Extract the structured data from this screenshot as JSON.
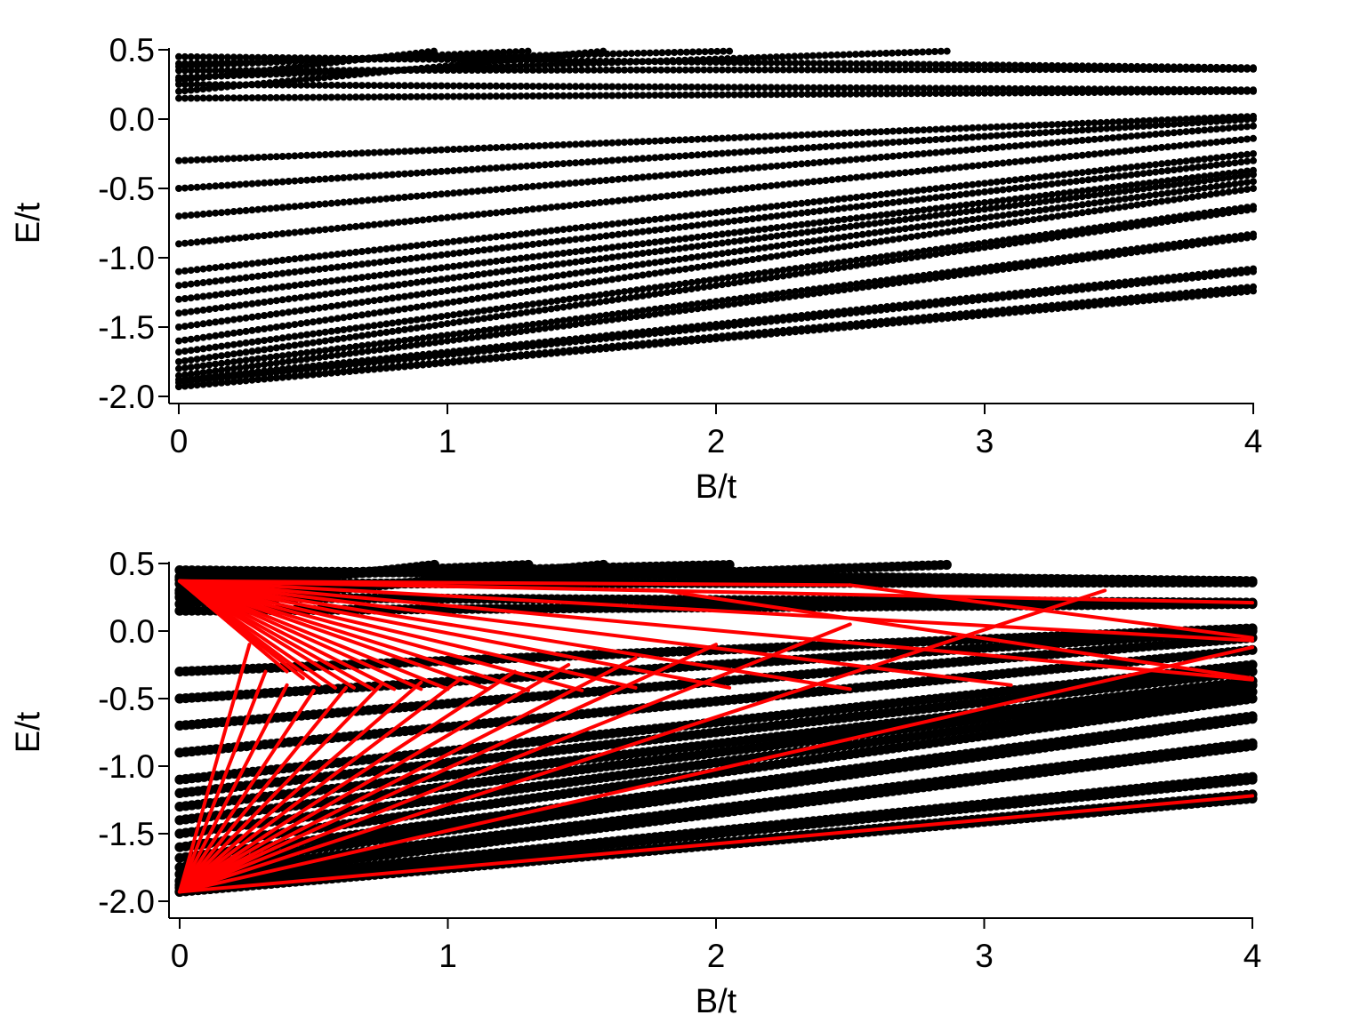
{
  "chart_data": [
    {
      "type": "scatter",
      "title": "",
      "xlabel": "B/t",
      "ylabel": "E/t",
      "xlim": [
        0,
        4
      ],
      "ylim": [
        -2.0,
        0.5
      ],
      "xticks": [
        0,
        1,
        2,
        3,
        4
      ],
      "xtick_labels": [
        "0",
        "1",
        "2",
        "3",
        "4"
      ],
      "yticks": [
        0.5,
        0.0,
        -0.5,
        -1.0,
        -1.5,
        -2.0
      ],
      "ytick_labels": [
        "0.5",
        "0.0",
        "-0.5",
        "-1.0",
        "-1.5",
        "-2.0"
      ],
      "grid": false,
      "legend": "none",
      "series": [
        {
          "style": "black-dots",
          "color": "#000000",
          "levels": [
            {
              "x": [
                0.0,
                4.0
              ],
              "y": [
                -1.93,
                -1.24
              ]
            },
            {
              "x": [
                0.0,
                4.0
              ],
              "y": [
                -1.93,
                -1.21
              ]
            },
            {
              "x": [
                0.0,
                4.0
              ],
              "y": [
                -1.9,
                -1.1
              ]
            },
            {
              "x": [
                0.0,
                4.0
              ],
              "y": [
                -1.88,
                -1.08
              ]
            },
            {
              "x": [
                0.0,
                4.0
              ],
              "y": [
                -1.85,
                -0.85
              ]
            },
            {
              "x": [
                0.0,
                4.0
              ],
              "y": [
                -1.8,
                -0.83
              ]
            },
            {
              "x": [
                0.0,
                4.0
              ],
              "y": [
                -1.75,
                -0.65
              ]
            },
            {
              "x": [
                0.0,
                4.0
              ],
              "y": [
                -1.68,
                -0.63
              ]
            },
            {
              "x": [
                0.0,
                4.0
              ],
              "y": [
                -1.6,
                -0.5
              ]
            },
            {
              "x": [
                0.0,
                4.0
              ],
              "y": [
                -1.5,
                -0.45
              ]
            },
            {
              "x": [
                0.0,
                4.0
              ],
              "y": [
                -1.4,
                -0.4
              ]
            },
            {
              "x": [
                0.0,
                4.0
              ],
              "y": [
                -1.3,
                -0.37
              ]
            },
            {
              "x": [
                0.0,
                4.0
              ],
              "y": [
                -1.2,
                -0.3
              ]
            },
            {
              "x": [
                0.0,
                4.0
              ],
              "y": [
                -1.1,
                -0.25
              ]
            },
            {
              "x": [
                0.0,
                4.0
              ],
              "y": [
                -0.9,
                -0.14
              ]
            },
            {
              "x": [
                0.0,
                4.0
              ],
              "y": [
                -0.7,
                -0.05
              ]
            },
            {
              "x": [
                0.0,
                4.0
              ],
              "y": [
                -0.5,
                0.0
              ]
            },
            {
              "x": [
                0.0,
                4.0
              ],
              "y": [
                -0.3,
                0.02
              ]
            },
            {
              "x": [
                0.0,
                4.0
              ],
              "y": [
                0.15,
                0.2
              ]
            },
            {
              "x": [
                0.0,
                4.0
              ],
              "y": [
                0.25,
                0.21
              ]
            },
            {
              "x": [
                0.0,
                4.0
              ],
              "y": [
                0.35,
                0.36
              ]
            },
            {
              "x": [
                0.0,
                4.0
              ],
              "y": [
                0.45,
                0.37
              ]
            },
            {
              "x": [
                0.0,
                2.86
              ],
              "y": [
                0.3,
                0.49
              ]
            },
            {
              "x": [
                0.0,
                2.05
              ],
              "y": [
                0.4,
                0.49
              ]
            },
            {
              "x": [
                0.0,
                1.58
              ],
              "y": [
                0.2,
                0.49
              ]
            },
            {
              "x": [
                0.0,
                1.3
              ],
              "y": [
                0.38,
                0.49
              ]
            },
            {
              "x": [
                0.0,
                0.95
              ],
              "y": [
                0.28,
                0.49
              ]
            }
          ]
        }
      ]
    },
    {
      "type": "scatter",
      "title": "",
      "xlabel": "B/t",
      "ylabel": "E/t",
      "xlim": [
        0,
        4
      ],
      "ylim": [
        -2.0,
        0.5
      ],
      "xticks": [
        0,
        1,
        2,
        3,
        4
      ],
      "xtick_labels": [
        "0",
        "1",
        "2",
        "3",
        "4"
      ],
      "yticks": [
        0.5,
        0.0,
        -0.5,
        -1.0,
        -1.5,
        -2.0
      ],
      "ytick_labels": [
        "0.5",
        "0.0",
        "-0.5",
        "-1.0",
        "-1.5",
        "-2.0"
      ],
      "grid": false,
      "legend": "none",
      "series": [
        {
          "style": "black-dots-large",
          "color": "#000000",
          "levels": [
            {
              "x": [
                0.0,
                4.0
              ],
              "y": [
                -1.93,
                -1.24
              ]
            },
            {
              "x": [
                0.0,
                4.0
              ],
              "y": [
                -1.93,
                -1.21
              ]
            },
            {
              "x": [
                0.0,
                4.0
              ],
              "y": [
                -1.9,
                -1.1
              ]
            },
            {
              "x": [
                0.0,
                4.0
              ],
              "y": [
                -1.88,
                -1.08
              ]
            },
            {
              "x": [
                0.0,
                4.0
              ],
              "y": [
                -1.85,
                -0.85
              ]
            },
            {
              "x": [
                0.0,
                4.0
              ],
              "y": [
                -1.8,
                -0.83
              ]
            },
            {
              "x": [
                0.0,
                4.0
              ],
              "y": [
                -1.75,
                -0.65
              ]
            },
            {
              "x": [
                0.0,
                4.0
              ],
              "y": [
                -1.68,
                -0.63
              ]
            },
            {
              "x": [
                0.0,
                4.0
              ],
              "y": [
                -1.6,
                -0.5
              ]
            },
            {
              "x": [
                0.0,
                4.0
              ],
              "y": [
                -1.5,
                -0.45
              ]
            },
            {
              "x": [
                0.0,
                4.0
              ],
              "y": [
                -1.4,
                -0.4
              ]
            },
            {
              "x": [
                0.0,
                4.0
              ],
              "y": [
                -1.3,
                -0.37
              ]
            },
            {
              "x": [
                0.0,
                4.0
              ],
              "y": [
                -1.2,
                -0.3
              ]
            },
            {
              "x": [
                0.0,
                4.0
              ],
              "y": [
                -1.1,
                -0.25
              ]
            },
            {
              "x": [
                0.0,
                4.0
              ],
              "y": [
                -0.9,
                -0.14
              ]
            },
            {
              "x": [
                0.0,
                4.0
              ],
              "y": [
                -0.7,
                -0.05
              ]
            },
            {
              "x": [
                0.0,
                4.0
              ],
              "y": [
                -0.5,
                0.0
              ]
            },
            {
              "x": [
                0.0,
                4.0
              ],
              "y": [
                -0.3,
                0.02
              ]
            },
            {
              "x": [
                0.0,
                4.0
              ],
              "y": [
                0.15,
                0.2
              ]
            },
            {
              "x": [
                0.0,
                4.0
              ],
              "y": [
                0.25,
                0.21
              ]
            },
            {
              "x": [
                0.0,
                4.0
              ],
              "y": [
                0.35,
                0.36
              ]
            },
            {
              "x": [
                0.0,
                4.0
              ],
              "y": [
                0.45,
                0.37
              ]
            },
            {
              "x": [
                0.0,
                2.86
              ],
              "y": [
                0.3,
                0.49
              ]
            },
            {
              "x": [
                0.0,
                2.05
              ],
              "y": [
                0.4,
                0.49
              ]
            },
            {
              "x": [
                0.0,
                1.58
              ],
              "y": [
                0.2,
                0.49
              ]
            },
            {
              "x": [
                0.0,
                1.3
              ],
              "y": [
                0.38,
                0.49
              ]
            },
            {
              "x": [
                0.0,
                0.95
              ],
              "y": [
                0.28,
                0.49
              ]
            }
          ]
        },
        {
          "style": "red-lines",
          "color": "#ff0000",
          "lines": [
            {
              "x": [
                0.0,
                4.0
              ],
              "y": [
                -1.93,
                -1.22
              ]
            },
            {
              "x": [
                0.0,
                4.0
              ],
              "y": [
                -1.93,
                -0.12
              ]
            },
            {
              "x": [
                0.0,
                3.45
              ],
              "y": [
                -1.93,
                0.3
              ]
            },
            {
              "x": [
                0.0,
                2.5
              ],
              "y": [
                -1.93,
                0.05
              ]
            },
            {
              "x": [
                0.0,
                2.0
              ],
              "y": [
                -1.93,
                -0.1
              ]
            },
            {
              "x": [
                0.0,
                1.7
              ],
              "y": [
                -1.93,
                -0.2
              ]
            },
            {
              "x": [
                0.0,
                1.45
              ],
              "y": [
                -1.93,
                -0.25
              ]
            },
            {
              "x": [
                0.0,
                1.25
              ],
              "y": [
                -1.93,
                -0.3
              ]
            },
            {
              "x": [
                0.0,
                1.05
              ],
              "y": [
                -1.93,
                -0.35
              ]
            },
            {
              "x": [
                0.0,
                0.9
              ],
              "y": [
                -1.93,
                -0.38
              ]
            },
            {
              "x": [
                0.0,
                0.75
              ],
              "y": [
                -1.93,
                -0.4
              ]
            },
            {
              "x": [
                0.0,
                0.62
              ],
              "y": [
                -1.93,
                -0.42
              ]
            },
            {
              "x": [
                0.0,
                0.5
              ],
              "y": [
                -1.93,
                -0.44
              ]
            },
            {
              "x": [
                0.0,
                0.4
              ],
              "y": [
                -1.93,
                -0.4
              ]
            },
            {
              "x": [
                0.0,
                0.32
              ],
              "y": [
                -1.93,
                -0.3
              ]
            },
            {
              "x": [
                0.0,
                0.26
              ],
              "y": [
                -1.93,
                -0.1
              ]
            },
            {
              "x": [
                0.0,
                4.0
              ],
              "y": [
                0.37,
                0.21
              ]
            },
            {
              "x": [
                0.0,
                4.0
              ],
              "y": [
                0.37,
                -0.07
              ]
            },
            {
              "x": [
                0.0,
                4.0
              ],
              "y": [
                0.37,
                -0.36
              ]
            },
            {
              "x": [
                0.0,
                3.1
              ],
              "y": [
                0.37,
                -0.4
              ]
            },
            {
              "x": [
                0.0,
                2.5
              ],
              "y": [
                0.37,
                -0.43
              ]
            },
            {
              "x": [
                0.0,
                2.05
              ],
              "y": [
                0.37,
                -0.42
              ]
            },
            {
              "x": [
                0.0,
                1.7
              ],
              "y": [
                0.37,
                -0.42
              ]
            },
            {
              "x": [
                0.0,
                1.5
              ],
              "y": [
                0.37,
                -0.44
              ]
            },
            {
              "x": [
                0.0,
                1.3
              ],
              "y": [
                0.37,
                -0.44
              ]
            },
            {
              "x": [
                0.0,
                1.15
              ],
              "y": [
                0.37,
                -0.43
              ]
            },
            {
              "x": [
                0.0,
                1.0
              ],
              "y": [
                0.37,
                -0.43
              ]
            },
            {
              "x": [
                0.0,
                0.9
              ],
              "y": [
                0.37,
                -0.43
              ]
            },
            {
              "x": [
                0.0,
                0.8
              ],
              "y": [
                0.37,
                -0.43
              ]
            },
            {
              "x": [
                0.0,
                0.72
              ],
              "y": [
                0.37,
                -0.43
              ]
            },
            {
              "x": [
                0.0,
                0.65
              ],
              "y": [
                0.37,
                -0.42
              ]
            },
            {
              "x": [
                0.0,
                0.58
              ],
              "y": [
                0.37,
                -0.42
              ]
            },
            {
              "x": [
                0.0,
                0.52
              ],
              "y": [
                0.37,
                -0.4
              ]
            },
            {
              "x": [
                0.0,
                0.46
              ],
              "y": [
                0.37,
                -0.35
              ]
            },
            {
              "x": [
                0.0,
                0.4
              ],
              "y": [
                0.37,
                -0.3
              ]
            },
            {
              "x": [
                0.0,
                0.34
              ],
              "y": [
                0.37,
                -0.2
              ]
            },
            {
              "x": [
                0.0,
                0.28
              ],
              "y": [
                0.37,
                -0.05
              ]
            },
            {
              "x": [
                0.0,
                1.8
              ],
              "y": [
                0.37,
                0.3
              ]
            },
            {
              "x": [
                0.0,
                2.5
              ],
              "y": [
                0.37,
                0.34
              ]
            },
            {
              "x": [
                1.8,
                4.0
              ],
              "y": [
                0.3,
                -0.35
              ]
            },
            {
              "x": [
                2.5,
                4.0
              ],
              "y": [
                0.34,
                -0.05
              ]
            }
          ]
        }
      ]
    }
  ]
}
